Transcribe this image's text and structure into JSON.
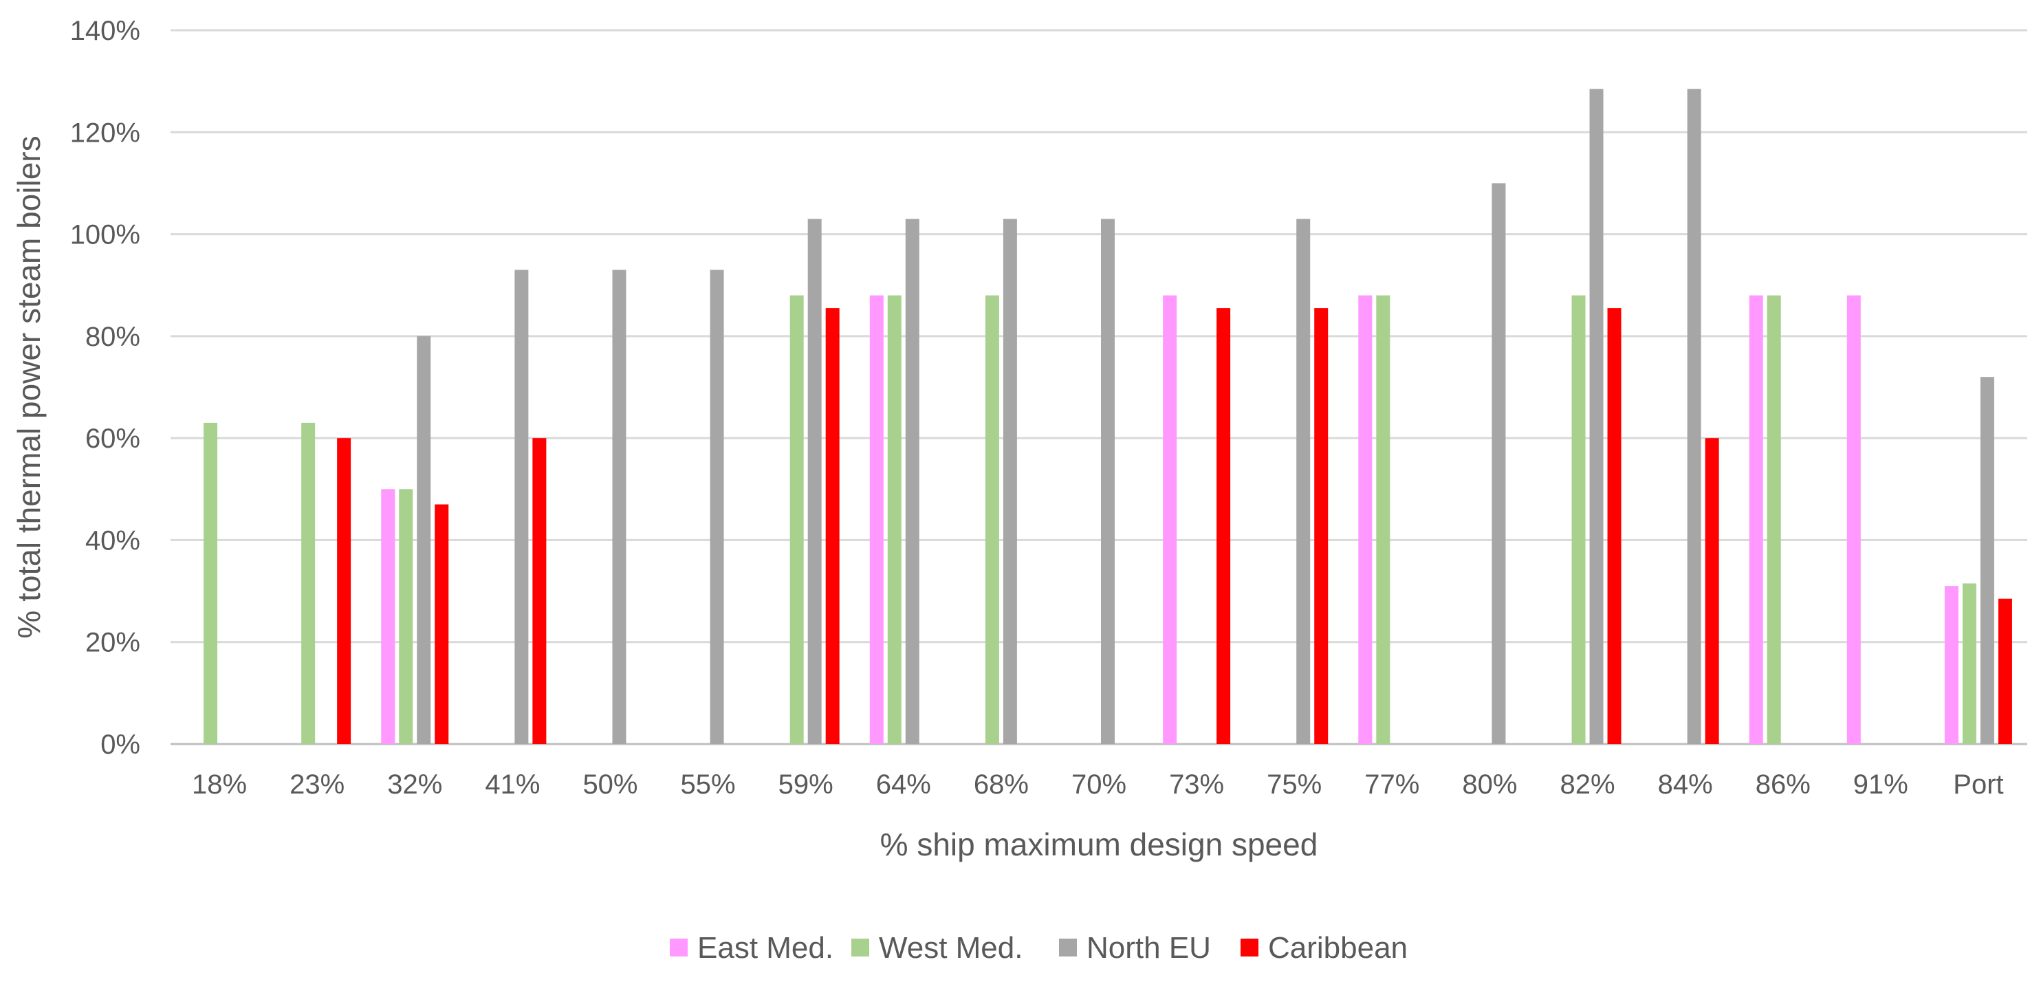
{
  "chart_data": {
    "type": "bar",
    "title": "",
    "xlabel": "% ship maximum design speed",
    "ylabel": "% total thermal power steam boilers",
    "ylim": [
      0,
      140
    ],
    "y_ticks": [
      "0%",
      "20%",
      "40%",
      "60%",
      "80%",
      "100%",
      "120%",
      "140%"
    ],
    "y_tick_values": [
      0,
      20,
      40,
      60,
      80,
      100,
      120,
      140
    ],
    "grid": true,
    "legend_position": "bottom",
    "categories": [
      "18%",
      "23%",
      "32%",
      "41%",
      "50%",
      "55%",
      "59%",
      "64%",
      "68%",
      "70%",
      "73%",
      "75%",
      "77%",
      "80%",
      "82%",
      "84%",
      "86%",
      "91%",
      "Port"
    ],
    "series": [
      {
        "name": "East Med.",
        "color": "#ff99ff",
        "values": [
          0,
          0,
          50,
          0,
          0,
          0,
          0,
          88,
          0,
          0,
          88,
          0,
          88,
          0,
          0,
          0,
          88,
          88,
          31
        ]
      },
      {
        "name": "West Med.",
        "color": "#a9d18e",
        "values": [
          63,
          63,
          50,
          0,
          0,
          0,
          88,
          88,
          88,
          0,
          0,
          0,
          88,
          0,
          88,
          0,
          88,
          0,
          31.5
        ]
      },
      {
        "name": "North EU",
        "color": "#a6a6a6",
        "values": [
          0,
          0,
          80,
          93,
          93,
          93,
          103,
          103,
          103,
          103,
          0,
          103,
          0,
          110,
          128.5,
          128.5,
          0,
          0,
          72
        ]
      },
      {
        "name": "Caribbean",
        "color": "#ff0000",
        "values": [
          0,
          60,
          47,
          60,
          0,
          0,
          85.5,
          0,
          0,
          0,
          85.5,
          85.5,
          0,
          0,
          85.5,
          60,
          0,
          0,
          28.5
        ]
      }
    ]
  }
}
